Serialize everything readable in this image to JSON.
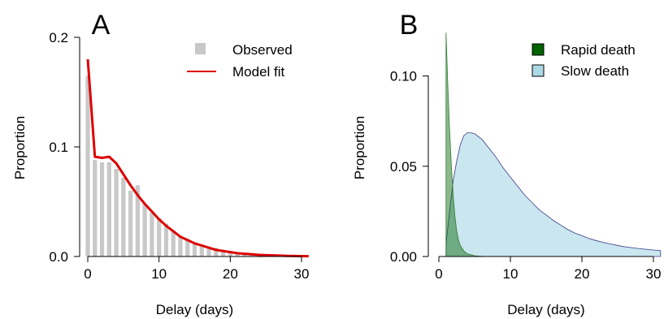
{
  "chart_data": [
    {
      "panel_label": "A",
      "type": "bar",
      "xlabel": "Delay (days)",
      "ylabel": "Proportion",
      "xlim": [
        -0.5,
        31
      ],
      "ylim": [
        0,
        0.2
      ],
      "x_ticks": [
        0,
        10,
        20,
        30
      ],
      "x_tick_labels": [
        "0",
        "10",
        "20",
        "30"
      ],
      "y_ticks": [
        0,
        0.1,
        0.2
      ],
      "y_tick_labels": [
        "0.0",
        "0.1",
        "0.2"
      ],
      "legend_position": "top-right",
      "series": [
        {
          "name": "Observed",
          "kind": "bar",
          "color": "#c8c8c8",
          "x": [
            0,
            1,
            2,
            3,
            4,
            5,
            6,
            7,
            8,
            9,
            10,
            11,
            12,
            13,
            14,
            15,
            16,
            17,
            18,
            19,
            20,
            21,
            22,
            23,
            24,
            25,
            26,
            27,
            28,
            29,
            30
          ],
          "values": [
            0.165,
            0.088,
            0.086,
            0.086,
            0.08,
            0.072,
            0.06,
            0.065,
            0.048,
            0.04,
            0.035,
            0.03,
            0.024,
            0.019,
            0.016,
            0.013,
            0.011,
            0.009,
            0.008,
            0.006,
            0.005,
            0.004,
            0.003,
            0.003,
            0.002,
            0.002,
            0.002,
            0.001,
            0.001,
            0.001,
            0.001
          ]
        },
        {
          "name": "Model fit",
          "kind": "line",
          "color": "#dd0000",
          "x": [
            0,
            1,
            2,
            3,
            4,
            5,
            6,
            7,
            8,
            9,
            10,
            11,
            12,
            13,
            14,
            15,
            16,
            17,
            18,
            19,
            20,
            21,
            22,
            23,
            24,
            25,
            26,
            27,
            28,
            29,
            30,
            31
          ],
          "values": [
            0.18,
            0.091,
            0.09,
            0.091,
            0.085,
            0.075,
            0.065,
            0.056,
            0.048,
            0.041,
            0.034,
            0.028,
            0.023,
            0.018,
            0.015,
            0.012,
            0.01,
            0.008,
            0.006,
            0.005,
            0.004,
            0.003,
            0.0025,
            0.002,
            0.0015,
            0.0012,
            0.001,
            0.0008,
            0.0006,
            0.0005,
            0.0004,
            0.0003
          ]
        }
      ]
    },
    {
      "panel_label": "B",
      "type": "area",
      "xlabel": "Delay (days)",
      "ylabel": "Proportion",
      "xlim": [
        0,
        31
      ],
      "ylim": [
        0,
        0.125
      ],
      "x_ticks": [
        0,
        10,
        20,
        30
      ],
      "x_tick_labels": [
        "0",
        "10",
        "20",
        "30"
      ],
      "y_ticks": [
        0,
        0.05,
        0.1
      ],
      "y_tick_labels": [
        "0.00",
        "0.05",
        "0.10"
      ],
      "legend_position": "top-right",
      "series": [
        {
          "name": "Slow death",
          "color": "#add8e6",
          "x": [
            1,
            1.5,
            2,
            2.5,
            3,
            3.5,
            4,
            4.5,
            5,
            6,
            7,
            8,
            9,
            10,
            11,
            12,
            13,
            14,
            15,
            16,
            17,
            18,
            19,
            20,
            21,
            22,
            23,
            24,
            25,
            26,
            27,
            28,
            29,
            30,
            31
          ],
          "values": [
            0.007,
            0.025,
            0.042,
            0.053,
            0.062,
            0.067,
            0.0685,
            0.0685,
            0.068,
            0.065,
            0.06,
            0.055,
            0.049,
            0.044,
            0.039,
            0.034,
            0.03,
            0.026,
            0.023,
            0.02,
            0.0175,
            0.015,
            0.013,
            0.0115,
            0.01,
            0.0088,
            0.0078,
            0.0069,
            0.0061,
            0.0054,
            0.0049,
            0.0044,
            0.004,
            0.0036,
            0.0033
          ]
        },
        {
          "name": "Rapid death",
          "color": "#006400",
          "x": [
            1,
            1.25,
            1.5,
            1.75,
            2,
            2.25,
            2.5,
            2.75,
            3,
            3.5,
            4,
            5,
            6
          ],
          "values": [
            0.124,
            0.095,
            0.07,
            0.05,
            0.034,
            0.022,
            0.014,
            0.009,
            0.006,
            0.003,
            0.0015,
            0.0004,
            0.0001
          ]
        }
      ]
    }
  ]
}
